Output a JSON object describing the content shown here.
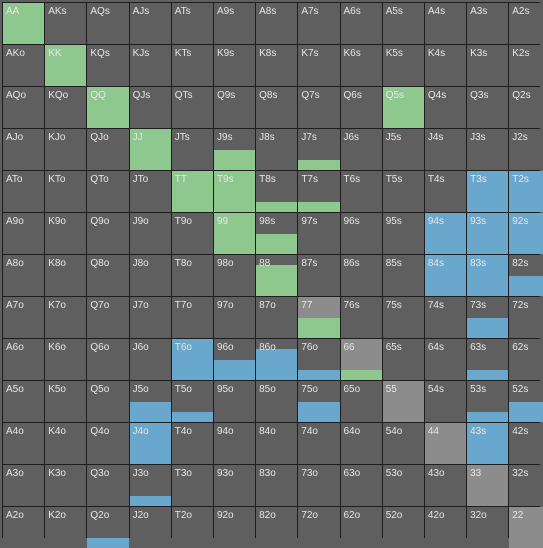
{
  "colors": {
    "green": "#8fc88f",
    "blue": "#6aa7cc",
    "gray": "#5f5f5f",
    "light_gray": "#8c8c8c"
  },
  "grid": {
    "rows": [
      [
        {
          "label": "AA",
          "fill": [
            [
              "green",
              1
            ]
          ]
        },
        {
          "label": "AKs"
        },
        {
          "label": "AQs"
        },
        {
          "label": "AJs"
        },
        {
          "label": "ATs"
        },
        {
          "label": "A9s"
        },
        {
          "label": "A8s"
        },
        {
          "label": "A7s"
        },
        {
          "label": "A6s"
        },
        {
          "label": "A5s"
        },
        {
          "label": "A4s"
        },
        {
          "label": "A3s"
        },
        {
          "label": "A2s"
        }
      ],
      [
        {
          "label": "AKo"
        },
        {
          "label": "KK",
          "fill": [
            [
              "green",
              1
            ]
          ]
        },
        {
          "label": "KQs"
        },
        {
          "label": "KJs"
        },
        {
          "label": "KTs"
        },
        {
          "label": "K9s"
        },
        {
          "label": "K8s"
        },
        {
          "label": "K7s"
        },
        {
          "label": "K6s"
        },
        {
          "label": "K5s"
        },
        {
          "label": "K4s"
        },
        {
          "label": "K3s"
        },
        {
          "label": "K2s"
        }
      ],
      [
        {
          "label": "AQo"
        },
        {
          "label": "KQo"
        },
        {
          "label": "QQ",
          "fill": [
            [
              "green",
              1
            ]
          ]
        },
        {
          "label": "QJs"
        },
        {
          "label": "QTs"
        },
        {
          "label": "Q9s"
        },
        {
          "label": "Q8s"
        },
        {
          "label": "Q7s"
        },
        {
          "label": "Q6s"
        },
        {
          "label": "Q5s",
          "fill": [
            [
              "green",
              1
            ]
          ]
        },
        {
          "label": "Q4s"
        },
        {
          "label": "Q3s"
        },
        {
          "label": "Q2s"
        }
      ],
      [
        {
          "label": "AJo"
        },
        {
          "label": "KJo"
        },
        {
          "label": "QJo"
        },
        {
          "label": "JJ",
          "fill": [
            [
              "green",
              1
            ]
          ]
        },
        {
          "label": "JTs"
        },
        {
          "label": "J9s",
          "fill": [
            [
              "green",
              0.5
            ]
          ]
        },
        {
          "label": "J8s"
        },
        {
          "label": "J7s",
          "fill": [
            [
              "green",
              0.25
            ]
          ]
        },
        {
          "label": "J6s"
        },
        {
          "label": "J5s"
        },
        {
          "label": "J4s"
        },
        {
          "label": "J3s"
        },
        {
          "label": "J2s"
        }
      ],
      [
        {
          "label": "ATo"
        },
        {
          "label": "KTo"
        },
        {
          "label": "QTo"
        },
        {
          "label": "JTo"
        },
        {
          "label": "TT",
          "fill": [
            [
              "green",
              1
            ]
          ]
        },
        {
          "label": "T9s",
          "fill": [
            [
              "green",
              1
            ]
          ]
        },
        {
          "label": "T8s",
          "fill": [
            [
              "green",
              0.25
            ]
          ]
        },
        {
          "label": "T7s",
          "fill": [
            [
              "green",
              0.25
            ]
          ]
        },
        {
          "label": "T6s"
        },
        {
          "label": "T5s"
        },
        {
          "label": "T4s"
        },
        {
          "label": "T3s",
          "fill": [
            [
              "blue",
              1
            ]
          ]
        },
        {
          "label": "T2s",
          "fill": [
            [
              "blue",
              1
            ]
          ]
        }
      ],
      [
        {
          "label": "A9o"
        },
        {
          "label": "K9o"
        },
        {
          "label": "Q9o"
        },
        {
          "label": "J9o"
        },
        {
          "label": "T9o"
        },
        {
          "label": "99",
          "fill": [
            [
              "green",
              1
            ]
          ]
        },
        {
          "label": "98s",
          "fill": [
            [
              "green",
              0.5
            ]
          ]
        },
        {
          "label": "97s"
        },
        {
          "label": "96s"
        },
        {
          "label": "95s"
        },
        {
          "label": "94s",
          "fill": [
            [
              "blue",
              1
            ]
          ]
        },
        {
          "label": "93s",
          "fill": [
            [
              "blue",
              1
            ]
          ]
        },
        {
          "label": "92s",
          "fill": [
            [
              "blue",
              1
            ]
          ]
        }
      ],
      [
        {
          "label": "A8o"
        },
        {
          "label": "K8o"
        },
        {
          "label": "Q8o"
        },
        {
          "label": "J8o"
        },
        {
          "label": "T8o"
        },
        {
          "label": "98o"
        },
        {
          "label": "88",
          "fill": [
            [
              "green",
              0.75
            ]
          ]
        },
        {
          "label": "87s"
        },
        {
          "label": "86s"
        },
        {
          "label": "85s"
        },
        {
          "label": "84s",
          "fill": [
            [
              "blue",
              1
            ]
          ]
        },
        {
          "label": "83s",
          "fill": [
            [
              "blue",
              1
            ]
          ]
        },
        {
          "label": "82s",
          "fill": [
            [
              "blue",
              0.5
            ]
          ]
        }
      ],
      [
        {
          "label": "A7o"
        },
        {
          "label": "K7o"
        },
        {
          "label": "Q7o"
        },
        {
          "label": "J7o"
        },
        {
          "label": "T7o"
        },
        {
          "label": "97o"
        },
        {
          "label": "87o"
        },
        {
          "label": "77",
          "light": true,
          "fill": [
            [
              "green",
              0.5
            ]
          ]
        },
        {
          "label": "76s"
        },
        {
          "label": "75s"
        },
        {
          "label": "74s"
        },
        {
          "label": "73s",
          "fill": [
            [
              "blue",
              0.5
            ]
          ]
        },
        {
          "label": "72s"
        }
      ],
      [
        {
          "label": "A6o"
        },
        {
          "label": "K6o"
        },
        {
          "label": "Q6o"
        },
        {
          "label": "J6o"
        },
        {
          "label": "T6o",
          "fill": [
            [
              "blue",
              1
            ]
          ]
        },
        {
          "label": "96o",
          "fill": [
            [
              "blue",
              0.5
            ]
          ]
        },
        {
          "label": "86o",
          "fill": [
            [
              "blue",
              0.75
            ]
          ]
        },
        {
          "label": "76o",
          "fill": [
            [
              "blue",
              0.25
            ]
          ]
        },
        {
          "label": "66",
          "light": true,
          "fill": [
            [
              "green",
              0.25
            ]
          ]
        },
        {
          "label": "65s"
        },
        {
          "label": "64s"
        },
        {
          "label": "63s",
          "fill": [
            [
              "blue",
              0.25
            ]
          ]
        },
        {
          "label": "62s"
        }
      ],
      [
        {
          "label": "A5o"
        },
        {
          "label": "K5o"
        },
        {
          "label": "Q5o"
        },
        {
          "label": "J5o",
          "fill": [
            [
              "blue",
              0.5
            ]
          ]
        },
        {
          "label": "T5o",
          "fill": [
            [
              "blue",
              0.25
            ]
          ]
        },
        {
          "label": "95o"
        },
        {
          "label": "85o"
        },
        {
          "label": "75o",
          "fill": [
            [
              "blue",
              0.5
            ]
          ]
        },
        {
          "label": "65o"
        },
        {
          "label": "55",
          "light": true
        },
        {
          "label": "54s"
        },
        {
          "label": "53s",
          "fill": [
            [
              "blue",
              0.25
            ]
          ]
        },
        {
          "label": "52s",
          "fill": [
            [
              "blue",
              0.5
            ]
          ]
        }
      ],
      [
        {
          "label": "A4o"
        },
        {
          "label": "K4o"
        },
        {
          "label": "Q4o"
        },
        {
          "label": "J4o",
          "fill": [
            [
              "blue",
              1
            ]
          ]
        },
        {
          "label": "T4o"
        },
        {
          "label": "94o"
        },
        {
          "label": "84o"
        },
        {
          "label": "74o"
        },
        {
          "label": "64o"
        },
        {
          "label": "54o"
        },
        {
          "label": "44",
          "light": true
        },
        {
          "label": "43s",
          "fill": [
            [
              "blue",
              1
            ]
          ]
        },
        {
          "label": "42s"
        }
      ],
      [
        {
          "label": "A3o"
        },
        {
          "label": "K3o"
        },
        {
          "label": "Q3o"
        },
        {
          "label": "J3o",
          "fill": [
            [
              "blue",
              0.25
            ]
          ]
        },
        {
          "label": "T3o"
        },
        {
          "label": "93o"
        },
        {
          "label": "83o"
        },
        {
          "label": "73o"
        },
        {
          "label": "63o"
        },
        {
          "label": "53o"
        },
        {
          "label": "43o"
        },
        {
          "label": "33",
          "light": true
        },
        {
          "label": "32s"
        }
      ],
      [
        {
          "label": "A2o"
        },
        {
          "label": "K2o"
        },
        {
          "label": "Q2o",
          "fill": [
            [
              "blue",
              0.25
            ]
          ]
        },
        {
          "label": "J2o"
        },
        {
          "label": "T2o"
        },
        {
          "label": "92o"
        },
        {
          "label": "82o"
        },
        {
          "label": "72o"
        },
        {
          "label": "62o"
        },
        {
          "label": "52o"
        },
        {
          "label": "42o"
        },
        {
          "label": "32o"
        },
        {
          "label": "22",
          "light": true
        }
      ]
    ]
  }
}
